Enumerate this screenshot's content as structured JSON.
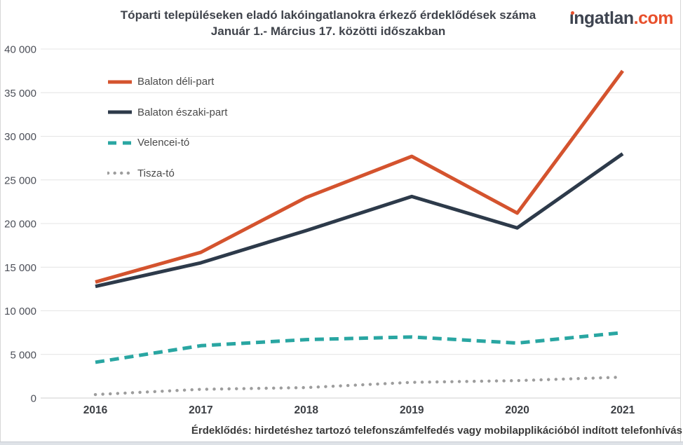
{
  "header": {
    "title_line1": "Tóparti településeken eladó lakóingatlanokra érkező érdeklődések száma",
    "title_line2": "Január 1.- Március 17. közötti időszakban",
    "logo": {
      "name": "ingatlan",
      "tld": ".com",
      "text_color": "#3e4450",
      "accent_color": "#e8502c"
    }
  },
  "footer": {
    "note": "Érdeklődés: hirdetéshez tartozó telefonszámfelfedés vagy mobilapplikációból indított telefonhívás"
  },
  "chart_data": {
    "type": "line",
    "title": "Tóparti településeken eladó lakóingatlanokra érkező érdeklődések száma Január 1.- Március 17. közötti időszakban",
    "x": [
      2016,
      2017,
      2018,
      2019,
      2020,
      2021
    ],
    "x_labels": [
      "2016",
      "2017",
      "2018",
      "2019",
      "2020",
      "2021"
    ],
    "series": [
      {
        "name": "Balaton déli-part",
        "color": "#d4532e",
        "style": "solid",
        "values": [
          13300,
          16700,
          23000,
          27700,
          21200,
          37500
        ]
      },
      {
        "name": "Balaton északi-part",
        "color": "#2d3a4a",
        "style": "solid",
        "values": [
          12800,
          15500,
          19200,
          23100,
          19500,
          28000
        ]
      },
      {
        "name": "Velencei-tó",
        "color": "#29a6a2",
        "style": "dashed",
        "values": [
          4100,
          6000,
          6700,
          7000,
          6300,
          7500
        ]
      },
      {
        "name": "Tisza-tó",
        "color": "#9d9d9d",
        "style": "dotted",
        "values": [
          400,
          1000,
          1200,
          1800,
          2000,
          2400
        ]
      }
    ],
    "ylim": [
      0,
      40000
    ],
    "ytick_step": 5000,
    "yticks": [
      0,
      5000,
      10000,
      15000,
      20000,
      25000,
      30000,
      35000,
      40000
    ],
    "ytick_labels": [
      "0",
      "5 000",
      "10 000",
      "15 000",
      "20 000",
      "25 000",
      "30 000",
      "35 000",
      "40 000"
    ],
    "grid": true,
    "legend_position": "top-left",
    "gridline_color": "#e4e4e4",
    "axisline_color": "#cfcfcf",
    "frame_color": "#d6d6d6",
    "ylabel_color": "#4c4f58",
    "xlabel_color": "#3c3f44"
  }
}
